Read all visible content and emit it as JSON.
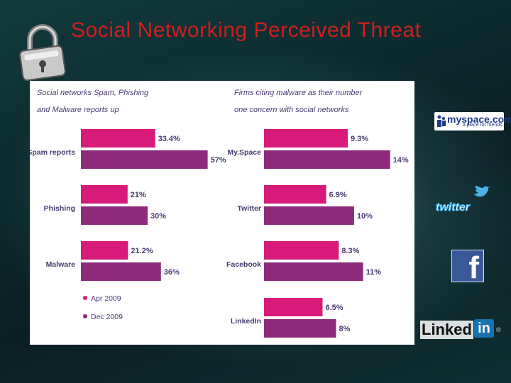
{
  "slide": {
    "title": "Social Networking Perceived Threat"
  },
  "logos": {
    "myspace_main": "myspace.com",
    "myspace_sub": "a place for friends",
    "twitter": "twitter",
    "facebook": "f",
    "linkedin_text": "Linked",
    "linkedin_in": "in",
    "linkedin_reg": "®"
  },
  "colors": {
    "title": "#d21e1e",
    "apr_2009": "#d81b7a",
    "dec_2009": "#8e2a7a",
    "panel_text": "#4a3a70"
  },
  "chart_data": [
    {
      "type": "bar",
      "orientation": "horizontal",
      "title": "Social networks Spam, Phishing and Malware reports up",
      "title_lines": [
        "Social networks Spam, Phishing",
        "and Malware reports up"
      ],
      "categories": [
        "Spam reports",
        "Phishing",
        "Malware"
      ],
      "series": [
        {
          "name": "Apr 2009",
          "values": [
            33.4,
            21,
            21.2
          ],
          "labels": [
            "33.4%",
            "21%",
            "21.2%"
          ]
        },
        {
          "name": "Dec 2009",
          "values": [
            57,
            30,
            36
          ],
          "labels": [
            "57%",
            "30%",
            "36%"
          ]
        }
      ],
      "xlim": [
        0,
        60
      ],
      "legend": {
        "placement": "bottom-left",
        "entries": [
          "Apr 2009",
          "Dec 2009"
        ]
      }
    },
    {
      "type": "bar",
      "orientation": "horizontal",
      "title": "Firms citing malware as their number one concern with social networks",
      "title_lines": [
        "Firms citing malware as their number",
        "one concern with social networks"
      ],
      "categories": [
        "My.Space",
        "Twitter",
        "Facebook",
        "LinkedIn"
      ],
      "series": [
        {
          "name": "Apr 2009",
          "values": [
            9.3,
            6.9,
            8.3,
            6.5
          ],
          "labels": [
            "9.3%",
            "6.9%",
            "8.3%",
            "6.5%"
          ]
        },
        {
          "name": "Dec 2009",
          "values": [
            14,
            10,
            11,
            8
          ],
          "labels": [
            "14%",
            "10%",
            "11%",
            "8%"
          ]
        }
      ],
      "xlim": [
        0,
        14.5
      ]
    }
  ]
}
